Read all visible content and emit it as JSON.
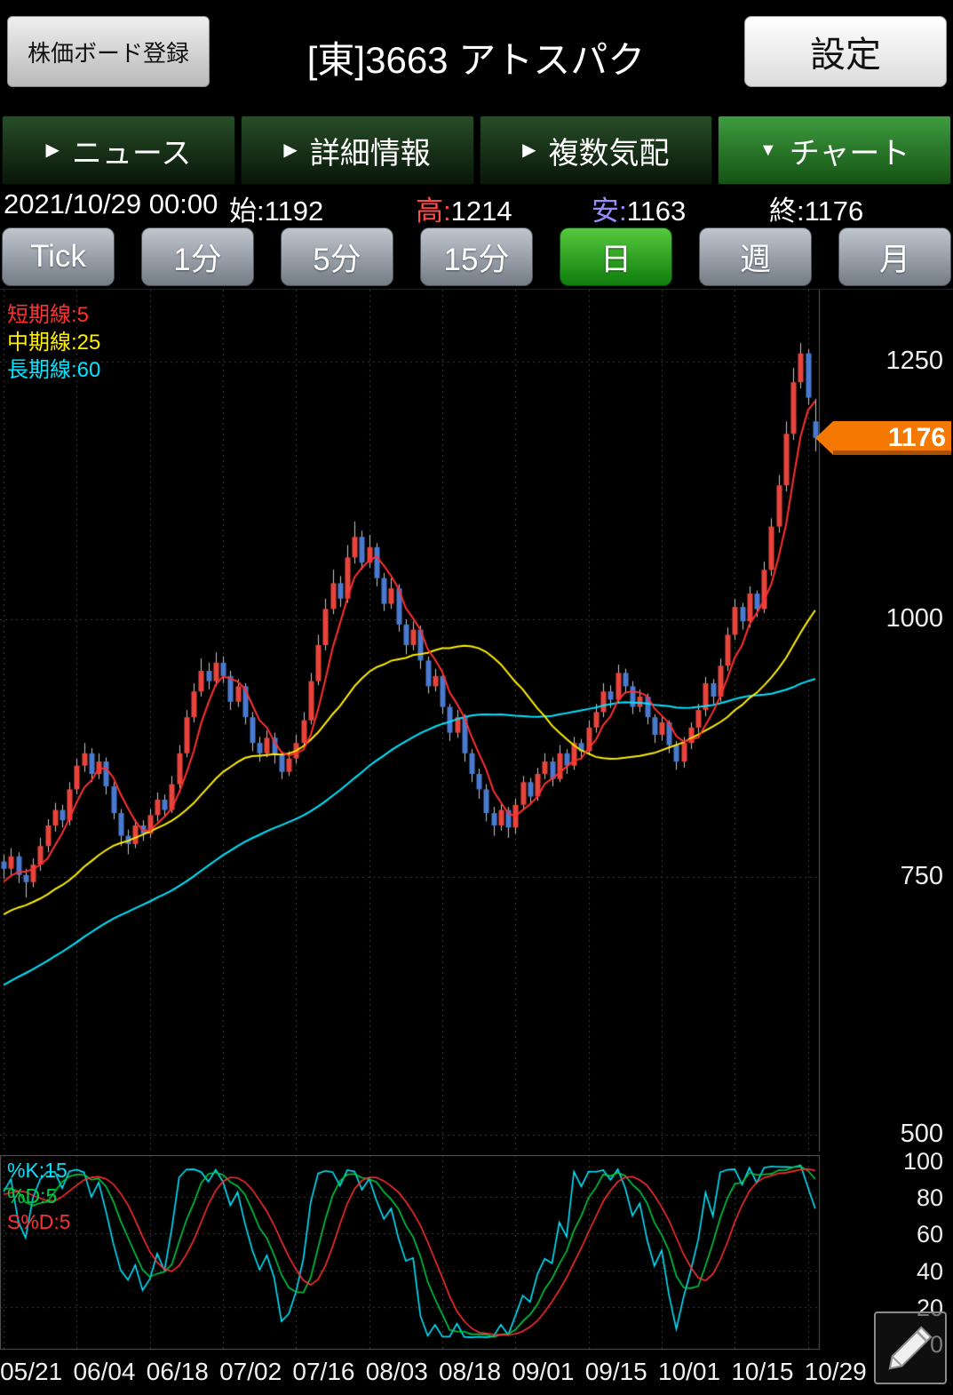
{
  "header": {
    "board_button": "株価ボード登録",
    "title": "[東]3663 アトスパク",
    "settings_button": "設定"
  },
  "tabs": [
    {
      "key": "news",
      "label": "ニュース",
      "arrow": "▶",
      "selected": false
    },
    {
      "key": "detail",
      "label": "詳細情報",
      "arrow": "▶",
      "selected": false
    },
    {
      "key": "quotes",
      "label": "複数気配",
      "arrow": "▶",
      "selected": false
    },
    {
      "key": "chart",
      "label": "チャート",
      "arrow": "▼",
      "selected": true
    }
  ],
  "info_bar": {
    "datetime": "2021/10/29 00:00",
    "open": {
      "label": "始:",
      "value": "1192"
    },
    "high": {
      "label": "高:",
      "value": "1214",
      "label_color": "#ff4a4a"
    },
    "low": {
      "label": "安:",
      "value": "1163",
      "label_color": "#9a8cff"
    },
    "close": {
      "label": "終:",
      "value": "1176"
    }
  },
  "timeframes": [
    {
      "key": "tick",
      "label": "Tick",
      "selected": false
    },
    {
      "key": "1min",
      "label": "1分",
      "selected": false
    },
    {
      "key": "5min",
      "label": "5分",
      "selected": false
    },
    {
      "key": "15min",
      "label": "15分",
      "selected": false
    },
    {
      "key": "day",
      "label": "日",
      "selected": true
    },
    {
      "key": "week",
      "label": "週",
      "selected": false
    },
    {
      "key": "month",
      "label": "月",
      "selected": false
    }
  ],
  "price_tag": {
    "value": "1176",
    "color": "#f57900"
  },
  "chart_data": {
    "type": "candlestick",
    "title": "[東]3663 アトスパク 日足",
    "x_labels": [
      "05/21",
      "06/04",
      "06/18",
      "07/02",
      "07/16",
      "08/03",
      "08/18",
      "09/01",
      "09/15",
      "10/01",
      "10/15",
      "10/29"
    ],
    "y_ticks": [
      1250,
      1000,
      750,
      500
    ],
    "y_range": [
      483,
      1320
    ],
    "grid": true,
    "up_color": "#e8443c",
    "down_color": "#4a7ad0",
    "wick_color": "#c8c8c8",
    "legend": [
      {
        "label": "短期線:5",
        "color": "#ff3030",
        "period": 5
      },
      {
        "label": "中期線:25",
        "color": "#ffee00",
        "period": 25
      },
      {
        "label": "長期線:60",
        "color": "#00e5ff",
        "period": 60
      }
    ],
    "history_closes": [
      520,
      526,
      518,
      532,
      540,
      534,
      546,
      552,
      548,
      560,
      568,
      562,
      574,
      582,
      576,
      570,
      584,
      592,
      588,
      600,
      608,
      602,
      614,
      622,
      616,
      628,
      636,
      630,
      642,
      650,
      644,
      656,
      664,
      658,
      670,
      678,
      672,
      682,
      690,
      684,
      694,
      700,
      692,
      704,
      712,
      706,
      698,
      712,
      720,
      714,
      708,
      722,
      730,
      724,
      718,
      732,
      740,
      734,
      742,
      752
    ],
    "ohlc": [
      [
        765,
        772,
        748,
        758
      ],
      [
        758,
        778,
        752,
        770
      ],
      [
        770,
        774,
        744,
        752
      ],
      [
        752,
        758,
        730,
        745
      ],
      [
        745,
        768,
        740,
        762
      ],
      [
        762,
        788,
        756,
        780
      ],
      [
        780,
        806,
        774,
        800
      ],
      [
        800,
        822,
        794,
        815
      ],
      [
        815,
        820,
        798,
        805
      ],
      [
        805,
        842,
        800,
        835
      ],
      [
        835,
        865,
        830,
        858
      ],
      [
        858,
        880,
        852,
        870
      ],
      [
        870,
        875,
        842,
        850
      ],
      [
        850,
        870,
        845,
        862
      ],
      [
        862,
        866,
        830,
        838
      ],
      [
        838,
        842,
        806,
        812
      ],
      [
        812,
        816,
        780,
        790
      ],
      [
        790,
        796,
        772,
        782
      ],
      [
        782,
        806,
        778,
        800
      ],
      [
        800,
        805,
        785,
        792
      ],
      [
        792,
        816,
        788,
        810
      ],
      [
        810,
        832,
        804,
        825
      ],
      [
        825,
        830,
        808,
        815
      ],
      [
        815,
        848,
        812,
        840
      ],
      [
        840,
        878,
        836,
        870
      ],
      [
        870,
        912,
        866,
        905
      ],
      [
        905,
        938,
        900,
        930
      ],
      [
        930,
        962,
        925,
        950
      ],
      [
        950,
        958,
        932,
        940
      ],
      [
        940,
        968,
        935,
        958
      ],
      [
        958,
        964,
        938,
        945
      ],
      [
        945,
        950,
        912,
        920
      ],
      [
        920,
        942,
        915,
        935
      ],
      [
        935,
        938,
        898,
        905
      ],
      [
        905,
        910,
        872,
        880
      ],
      [
        880,
        886,
        862,
        870
      ],
      [
        870,
        892,
        866,
        885
      ],
      [
        885,
        890,
        860,
        868
      ],
      [
        868,
        872,
        845,
        852
      ],
      [
        852,
        872,
        848,
        865
      ],
      [
        865,
        888,
        860,
        880
      ],
      [
        880,
        910,
        876,
        902
      ],
      [
        902,
        948,
        898,
        940
      ],
      [
        940,
        985,
        936,
        975
      ],
      [
        975,
        1020,
        970,
        1010
      ],
      [
        1010,
        1048,
        1005,
        1035
      ],
      [
        1035,
        1042,
        1012,
        1020
      ],
      [
        1020,
        1072,
        1016,
        1060
      ],
      [
        1060,
        1095,
        1054,
        1080
      ],
      [
        1080,
        1086,
        1048,
        1055
      ],
      [
        1055,
        1082,
        1050,
        1070
      ],
      [
        1070,
        1074,
        1032,
        1040
      ],
      [
        1040,
        1045,
        1008,
        1015
      ],
      [
        1015,
        1040,
        1010,
        1030
      ],
      [
        1030,
        1034,
        988,
        995
      ],
      [
        995,
        1000,
        966,
        975
      ],
      [
        975,
        998,
        970,
        990
      ],
      [
        990,
        994,
        952,
        960
      ],
      [
        960,
        964,
        928,
        935
      ],
      [
        935,
        952,
        930,
        945
      ],
      [
        945,
        948,
        908,
        915
      ],
      [
        915,
        918,
        882,
        890
      ],
      [
        890,
        912,
        885,
        905
      ],
      [
        905,
        908,
        862,
        870
      ],
      [
        870,
        874,
        842,
        850
      ],
      [
        850,
        855,
        826,
        835
      ],
      [
        835,
        840,
        804,
        812
      ],
      [
        812,
        818,
        790,
        800
      ],
      [
        800,
        822,
        795,
        815
      ],
      [
        815,
        818,
        788,
        798
      ],
      [
        798,
        826,
        792,
        820
      ],
      [
        820,
        848,
        815,
        842
      ],
      [
        842,
        846,
        820,
        828
      ],
      [
        828,
        856,
        824,
        850
      ],
      [
        850,
        870,
        845,
        862
      ],
      [
        862,
        866,
        838,
        845
      ],
      [
        845,
        878,
        842,
        870
      ],
      [
        870,
        874,
        850,
        858
      ],
      [
        858,
        886,
        854,
        880
      ],
      [
        880,
        884,
        864,
        872
      ],
      [
        872,
        902,
        868,
        895
      ],
      [
        895,
        918,
        890,
        910
      ],
      [
        910,
        938,
        905,
        930
      ],
      [
        930,
        936,
        914,
        922
      ],
      [
        922,
        956,
        918,
        948
      ],
      [
        948,
        952,
        928,
        935
      ],
      [
        935,
        940,
        908,
        915
      ],
      [
        915,
        932,
        910,
        925
      ],
      [
        925,
        928,
        898,
        905
      ],
      [
        905,
        908,
        880,
        888
      ],
      [
        888,
        906,
        882,
        900
      ],
      [
        900,
        902,
        870,
        878
      ],
      [
        878,
        882,
        854,
        862
      ],
      [
        862,
        886,
        856,
        880
      ],
      [
        880,
        900,
        874,
        895
      ],
      [
        895,
        918,
        890,
        912
      ],
      [
        912,
        944,
        906,
        938
      ],
      [
        938,
        942,
        918,
        925
      ],
      [
        925,
        962,
        920,
        955
      ],
      [
        955,
        992,
        950,
        985
      ],
      [
        985,
        1020,
        980,
        1012
      ],
      [
        1012,
        1016,
        990,
        998
      ],
      [
        998,
        1032,
        992,
        1025
      ],
      [
        1025,
        1028,
        1002,
        1010
      ],
      [
        1010,
        1056,
        1006,
        1048
      ],
      [
        1048,
        1098,
        1042,
        1090
      ],
      [
        1090,
        1140,
        1084,
        1130
      ],
      [
        1130,
        1192,
        1124,
        1180
      ],
      [
        1180,
        1244,
        1174,
        1230
      ],
      [
        1230,
        1268,
        1224,
        1258
      ],
      [
        1258,
        1262,
        1208,
        1215
      ],
      [
        1192,
        1214,
        1163,
        1176
      ]
    ],
    "stochastic": {
      "legend": [
        {
          "label": "%K:15",
          "color": "#00e5ff"
        },
        {
          "label": "%D:5",
          "color": "#00cc44"
        },
        {
          "label": "S%D:5",
          "color": "#ff3030"
        }
      ],
      "k_period": 15,
      "d_period": 5,
      "sd_period": 5,
      "y_ticks": [
        100,
        80,
        60,
        40,
        20,
        0
      ]
    }
  }
}
